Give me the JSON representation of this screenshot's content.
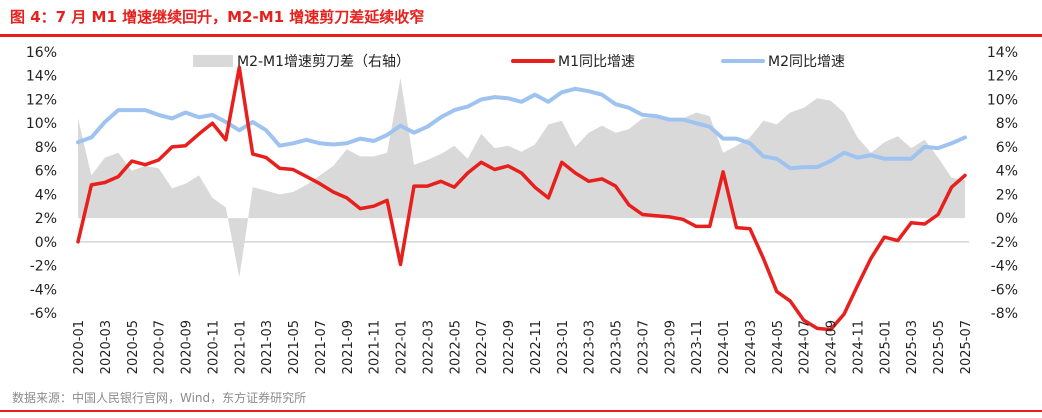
{
  "header": {
    "title": "图 4：7 月 M1 增速继续回升，M2-M1 增速剪刀差延续收窄"
  },
  "footer": {
    "source": "数据来源：中国人民银行官网，Wind，东方证券研究所"
  },
  "colors": {
    "accent": "#e8201d",
    "m1": "#e8201d",
    "m2": "#9fc3f0",
    "gap": "#d9d9d9"
  },
  "chart_data": {
    "type": "line",
    "title": "",
    "x_tick_labels": [
      "2020-01",
      "2020-03",
      "2020-05",
      "2020-07",
      "2020-09",
      "2020-11",
      "2021-01",
      "2021-03",
      "2021-05",
      "2021-07",
      "2021-09",
      "2021-11",
      "2022-01",
      "2022-03",
      "2022-05",
      "2022-07",
      "2022-09",
      "2022-11",
      "2023-01",
      "2023-03",
      "2023-05",
      "2023-07",
      "2023-09",
      "2023-11",
      "2024-01",
      "2024-03",
      "2024-05",
      "2024-07",
      "2024-09",
      "2024-11",
      "2025-01",
      "2025-03",
      "2025-05",
      "2025-07"
    ],
    "x": [
      "2020-01",
      "2020-02",
      "2020-03",
      "2020-04",
      "2020-05",
      "2020-06",
      "2020-07",
      "2020-08",
      "2020-09",
      "2020-10",
      "2020-11",
      "2020-12",
      "2021-01",
      "2021-02",
      "2021-03",
      "2021-04",
      "2021-05",
      "2021-06",
      "2021-07",
      "2021-08",
      "2021-09",
      "2021-10",
      "2021-11",
      "2021-12",
      "2022-01",
      "2022-02",
      "2022-03",
      "2022-04",
      "2022-05",
      "2022-06",
      "2022-07",
      "2022-08",
      "2022-09",
      "2022-10",
      "2022-11",
      "2022-12",
      "2023-01",
      "2023-02",
      "2023-03",
      "2023-04",
      "2023-05",
      "2023-06",
      "2023-07",
      "2023-08",
      "2023-09",
      "2023-10",
      "2023-11",
      "2023-12",
      "2024-01",
      "2024-02",
      "2024-03",
      "2024-04",
      "2024-05",
      "2024-06",
      "2024-07",
      "2024-08",
      "2024-09",
      "2024-10",
      "2024-11",
      "2024-12",
      "2025-01",
      "2025-02",
      "2025-03",
      "2025-04",
      "2025-05",
      "2025-06",
      "2025-07"
    ],
    "left_axis": {
      "ylim": [
        -6,
        16
      ],
      "ticks": [
        "-6%",
        "-4%",
        "-2%",
        "0%",
        "2%",
        "4%",
        "6%",
        "8%",
        "10%",
        "12%",
        "14%",
        "16%"
      ]
    },
    "right_axis": {
      "ylim": [
        -8,
        14
      ],
      "ticks": [
        "-8%",
        "-6%",
        "-4%",
        "-2%",
        "0%",
        "2%",
        "4%",
        "6%",
        "8%",
        "10%",
        "12%",
        "14%"
      ]
    },
    "series": [
      {
        "name": "M2-M1增速剪刀差（右轴）",
        "type": "area",
        "axis": "right",
        "values": [
          8.4,
          3.6,
          5.1,
          5.5,
          4.0,
          4.4,
          4.2,
          2.5,
          2.9,
          3.6,
          1.7,
          0.9,
          -5.0,
          2.6,
          2.3,
          2.0,
          2.2,
          2.8,
          3.6,
          4.4,
          5.8,
          5.2,
          5.2,
          5.5,
          11.8,
          4.5,
          4.9,
          5.4,
          6.1,
          5.0,
          7.1,
          5.9,
          6.1,
          5.6,
          6.2,
          7.9,
          8.2,
          6.0,
          7.2,
          7.8,
          7.2,
          7.5,
          8.4,
          8.5,
          8.2,
          8.4,
          8.9,
          8.6,
          5.5,
          6.1,
          6.8,
          8.2,
          7.9,
          8.9,
          9.3,
          10.1,
          9.9,
          8.9,
          6.8,
          5.5,
          6.4,
          6.9,
          5.9,
          6.6,
          5.1,
          3.4,
          3.2
        ]
      },
      {
        "name": "M1同比增速",
        "type": "line",
        "axis": "left",
        "values": [
          0.0,
          4.8,
          5.0,
          5.5,
          6.8,
          6.5,
          6.9,
          8.0,
          8.1,
          9.1,
          10.0,
          8.6,
          14.7,
          7.4,
          7.1,
          6.2,
          6.1,
          5.5,
          4.9,
          4.2,
          3.7,
          2.8,
          3.0,
          3.5,
          -1.9,
          4.7,
          4.7,
          5.1,
          4.6,
          5.8,
          6.7,
          6.1,
          6.4,
          5.8,
          4.6,
          3.7,
          6.7,
          5.8,
          5.1,
          5.3,
          4.7,
          3.1,
          2.3,
          2.2,
          2.1,
          1.9,
          1.3,
          1.3,
          5.9,
          1.2,
          1.1,
          -1.4,
          -4.2,
          -5.0,
          -6.6,
          -7.3,
          -7.4,
          -6.1,
          -3.7,
          -1.4,
          0.4,
          0.1,
          1.6,
          1.5,
          2.3,
          4.6,
          5.6
        ]
      },
      {
        "name": "M2同比增速",
        "type": "line",
        "axis": "left",
        "values": [
          8.4,
          8.8,
          10.1,
          11.1,
          11.1,
          11.1,
          10.7,
          10.4,
          10.9,
          10.5,
          10.7,
          10.1,
          9.4,
          10.1,
          9.4,
          8.1,
          8.3,
          8.6,
          8.3,
          8.2,
          8.3,
          8.7,
          8.5,
          9.0,
          9.8,
          9.2,
          9.7,
          10.5,
          11.1,
          11.4,
          12.0,
          12.2,
          12.1,
          11.8,
          12.4,
          11.8,
          12.6,
          12.9,
          12.7,
          12.4,
          11.6,
          11.3,
          10.7,
          10.6,
          10.3,
          10.3,
          10.0,
          9.7,
          8.7,
          8.7,
          8.3,
          7.2,
          7.0,
          6.2,
          6.3,
          6.3,
          6.8,
          7.5,
          7.1,
          7.3,
          7.0,
          7.0,
          7.0,
          8.0,
          7.9,
          8.3,
          8.8
        ]
      }
    ],
    "legend": [
      "M2-M1增速剪刀差（右轴）",
      "M1同比增速",
      "M2同比增速"
    ],
    "legend_position": "top"
  }
}
